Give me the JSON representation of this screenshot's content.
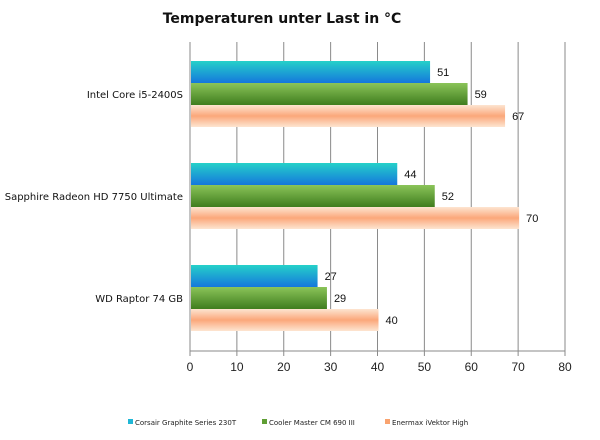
{
  "chart_data": {
    "type": "bar",
    "orientation": "horizontal",
    "title": "Temperaturen  unter Last in °C",
    "categories": [
      "Intel Core i5-2400S",
      "Sapphire Radeon HD 7750 Ultimate",
      "WD Raptor 74 GB"
    ],
    "series": [
      {
        "name": "Corsair Graphite Series 230T",
        "values": [
          51,
          44,
          27
        ],
        "color": "#1fb7d6"
      },
      {
        "name": "Cooler Master CM 690 III",
        "values": [
          59,
          52,
          29
        ],
        "color": "#5f9e34"
      },
      {
        "name": "Enermax iVektor High",
        "values": [
          67,
          70,
          40
        ],
        "color": "#f9a36f"
      }
    ],
    "xlim": [
      0,
      80
    ],
    "xticks": [
      "0",
      "10",
      "20",
      "30",
      "40",
      "50",
      "60",
      "70",
      "80"
    ],
    "grid": true,
    "legend_position": "bottom",
    "xlabel": "",
    "ylabel": ""
  }
}
